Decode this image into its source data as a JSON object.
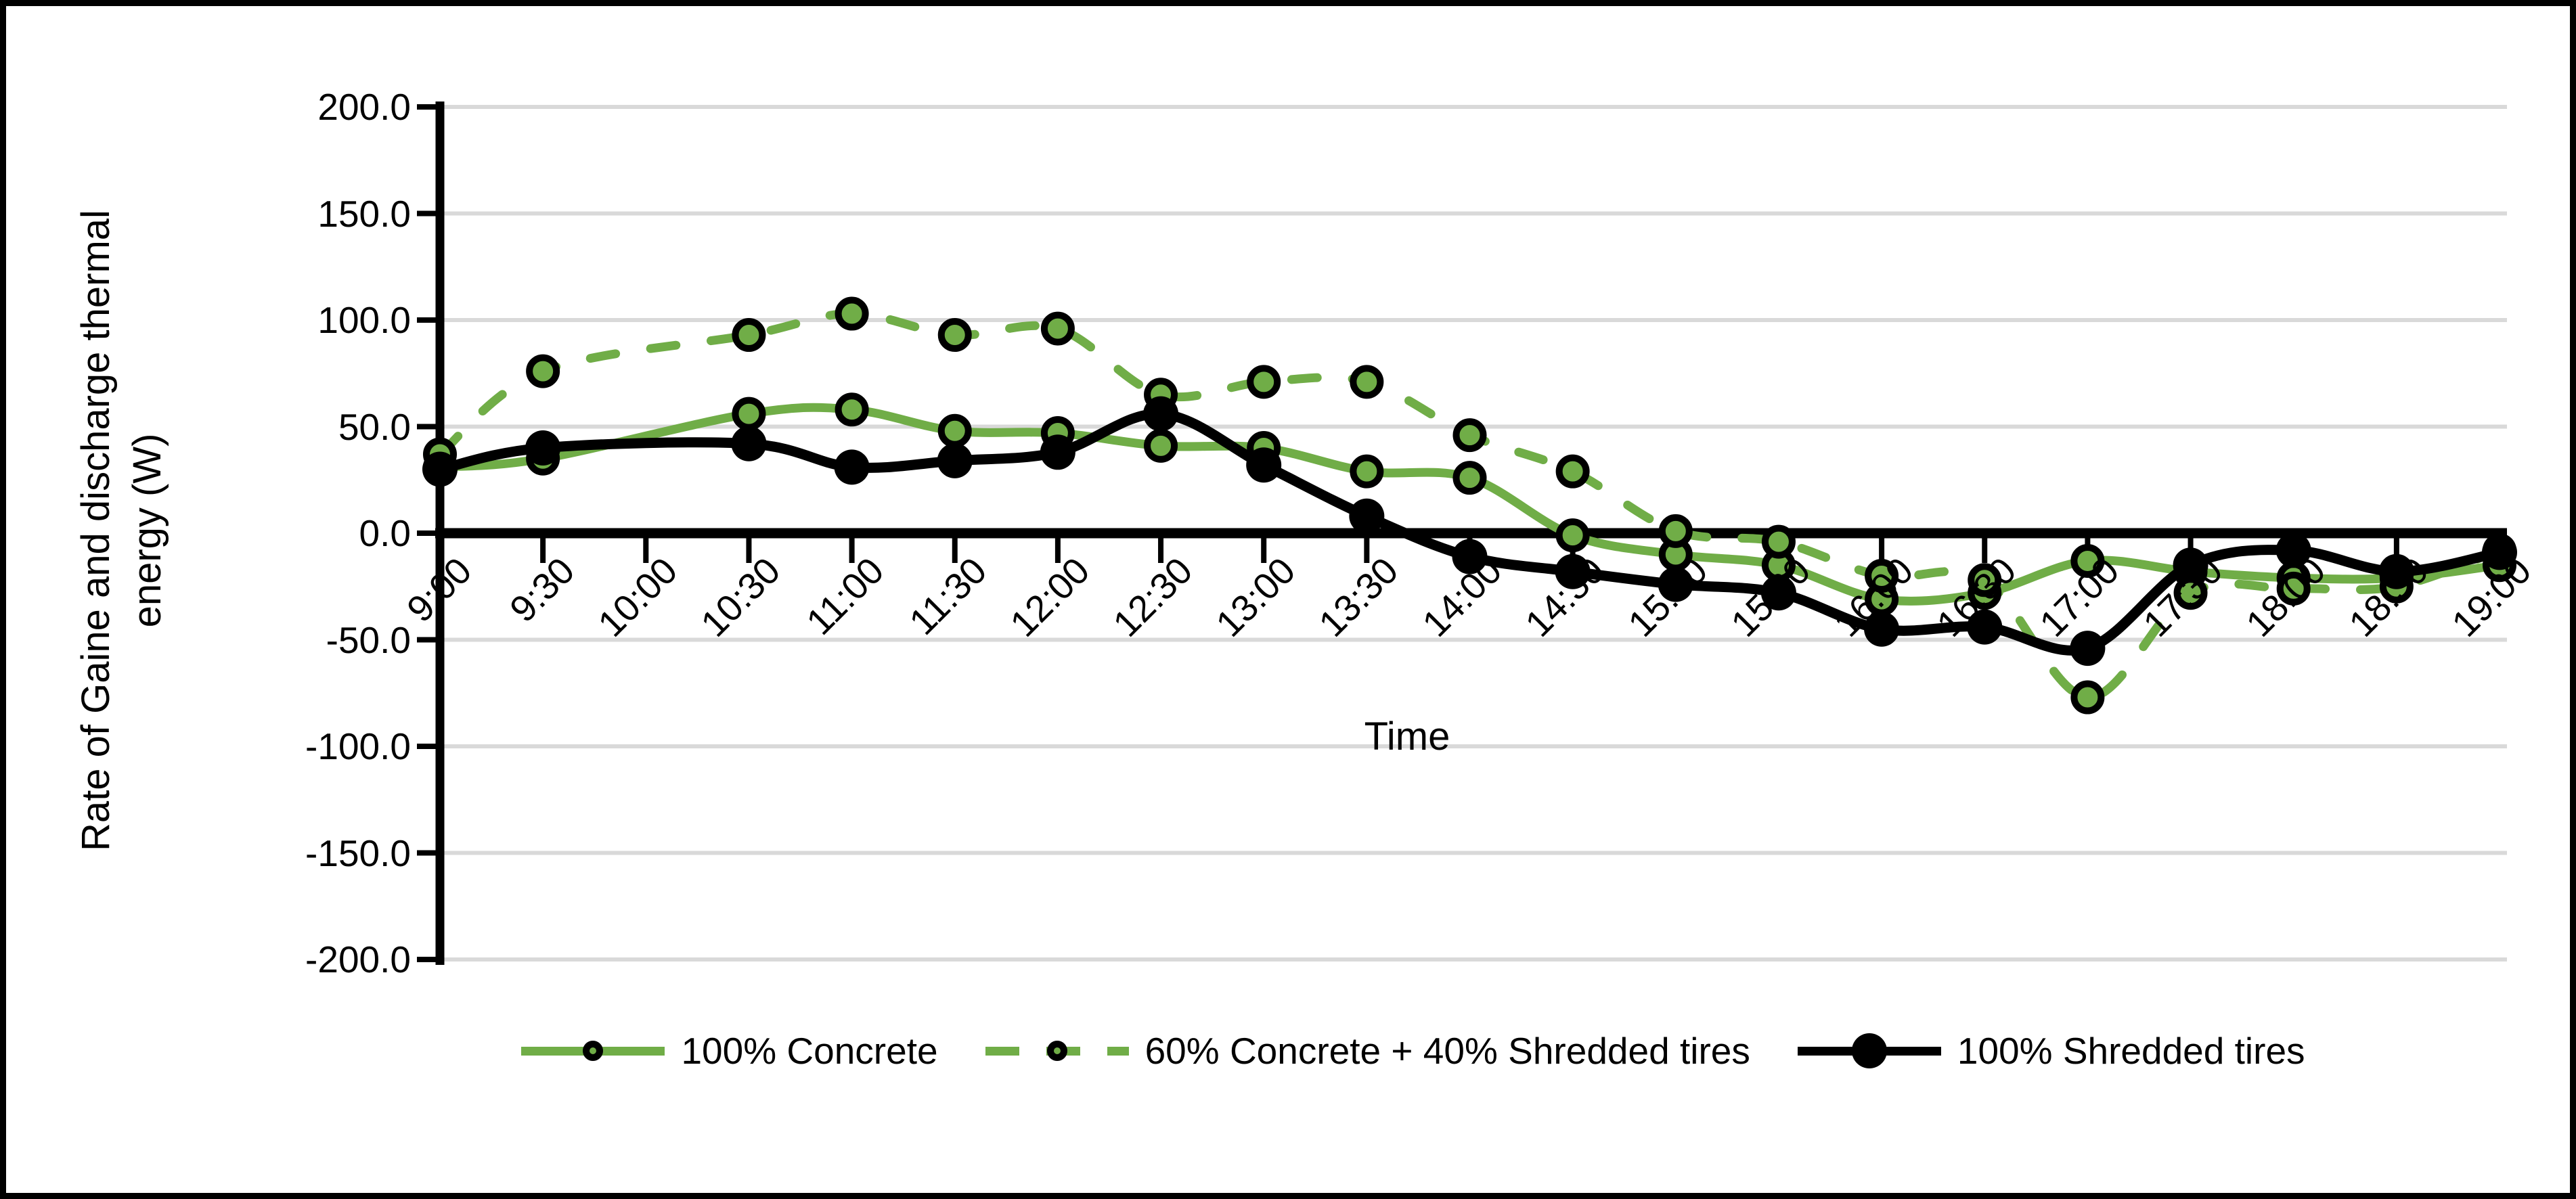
{
  "figure": {
    "background": "#ffffff",
    "border_color": "#000000",
    "gridline_color": "#D9D9D9",
    "axis_color": "#000000"
  },
  "chart_data": {
    "type": "line",
    "title": "",
    "xlabel": "Time",
    "ylabel_line1": "Rate of Gaine and discharge thermal",
    "ylabel_line2": "energy (W)",
    "ylim": [
      -200,
      200
    ],
    "ytick_step": 50,
    "grid": true,
    "legend_position": "bottom",
    "ytick_labels": [
      "200.0",
      "150.0",
      "100.0",
      "50.0",
      "0.0",
      "-50.0",
      "-100.0",
      "-150.0",
      "-200.0"
    ],
    "ytick_values": [
      200,
      150,
      100,
      50,
      0,
      -50,
      -100,
      -150,
      -200
    ],
    "categories": [
      "9:00",
      "9:30",
      "10:00",
      "10:30",
      "11:00",
      "11:30",
      "12:00",
      "12:30",
      "13:00",
      "13:30",
      "14:00",
      "14:30",
      "15:00",
      "15:30",
      "16:00",
      "16:30",
      "17:00",
      "17:30",
      "18:00",
      "18:30",
      "19:00"
    ],
    "series": [
      {
        "name": "100% Concrete",
        "color": "#70AD47",
        "line_style": "solid",
        "marker": "circle",
        "marker_fill": "#70AD47",
        "marker_stroke": "#000000",
        "values": [
          31,
          35,
          null,
          56,
          58,
          48,
          47,
          41,
          40,
          29,
          26,
          -1,
          -10,
          -15,
          -31,
          -28,
          -13,
          -18,
          -21,
          -21,
          -15
        ]
      },
      {
        "name": "60% Concrete + 40% Shredded tires",
        "color": "#70AD47",
        "line_style": "dashed",
        "marker": "circle",
        "marker_fill": "#70AD47",
        "marker_stroke": "#000000",
        "values": [
          37,
          76,
          null,
          93,
          103,
          93,
          96,
          65,
          71,
          71,
          46,
          29,
          1,
          -4,
          -20,
          -22,
          -77,
          -28,
          -26,
          -25,
          -8
        ]
      },
      {
        "name": "100% Shredded tires",
        "color": "#000000",
        "line_style": "solid",
        "marker": "circle",
        "marker_fill": "#000000",
        "marker_stroke": "#000000",
        "values": [
          30,
          40,
          null,
          42,
          31,
          34,
          38,
          56,
          32,
          8,
          -11,
          -18,
          -24,
          -28,
          -45,
          -44,
          -54,
          -15,
          -8,
          -18,
          -9
        ]
      }
    ]
  }
}
